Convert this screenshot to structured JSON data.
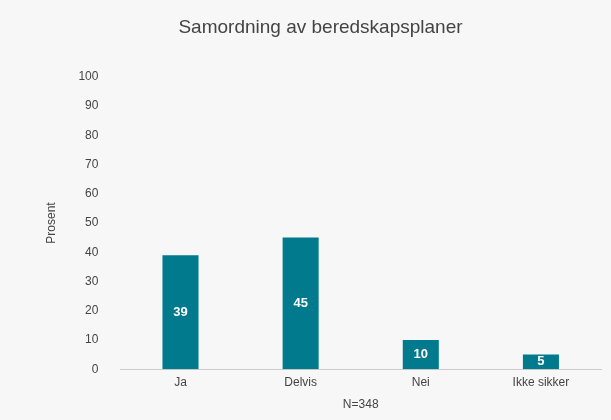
{
  "chart_data": {
    "type": "bar",
    "title": "Samordning av beredskapsplaner",
    "y_label": "Prosent",
    "x_label": "N=348",
    "categories": [
      "Ja",
      "Delvis",
      "Nei",
      "Ikke sikker"
    ],
    "values": [
      39,
      45,
      10,
      5
    ],
    "color": "#007a8c",
    "ylim": [
      0,
      100
    ],
    "yticks": [
      0,
      10,
      20,
      30,
      40,
      50,
      60,
      70,
      80,
      90,
      100
    ],
    "grid": false,
    "data_labels": true
  }
}
